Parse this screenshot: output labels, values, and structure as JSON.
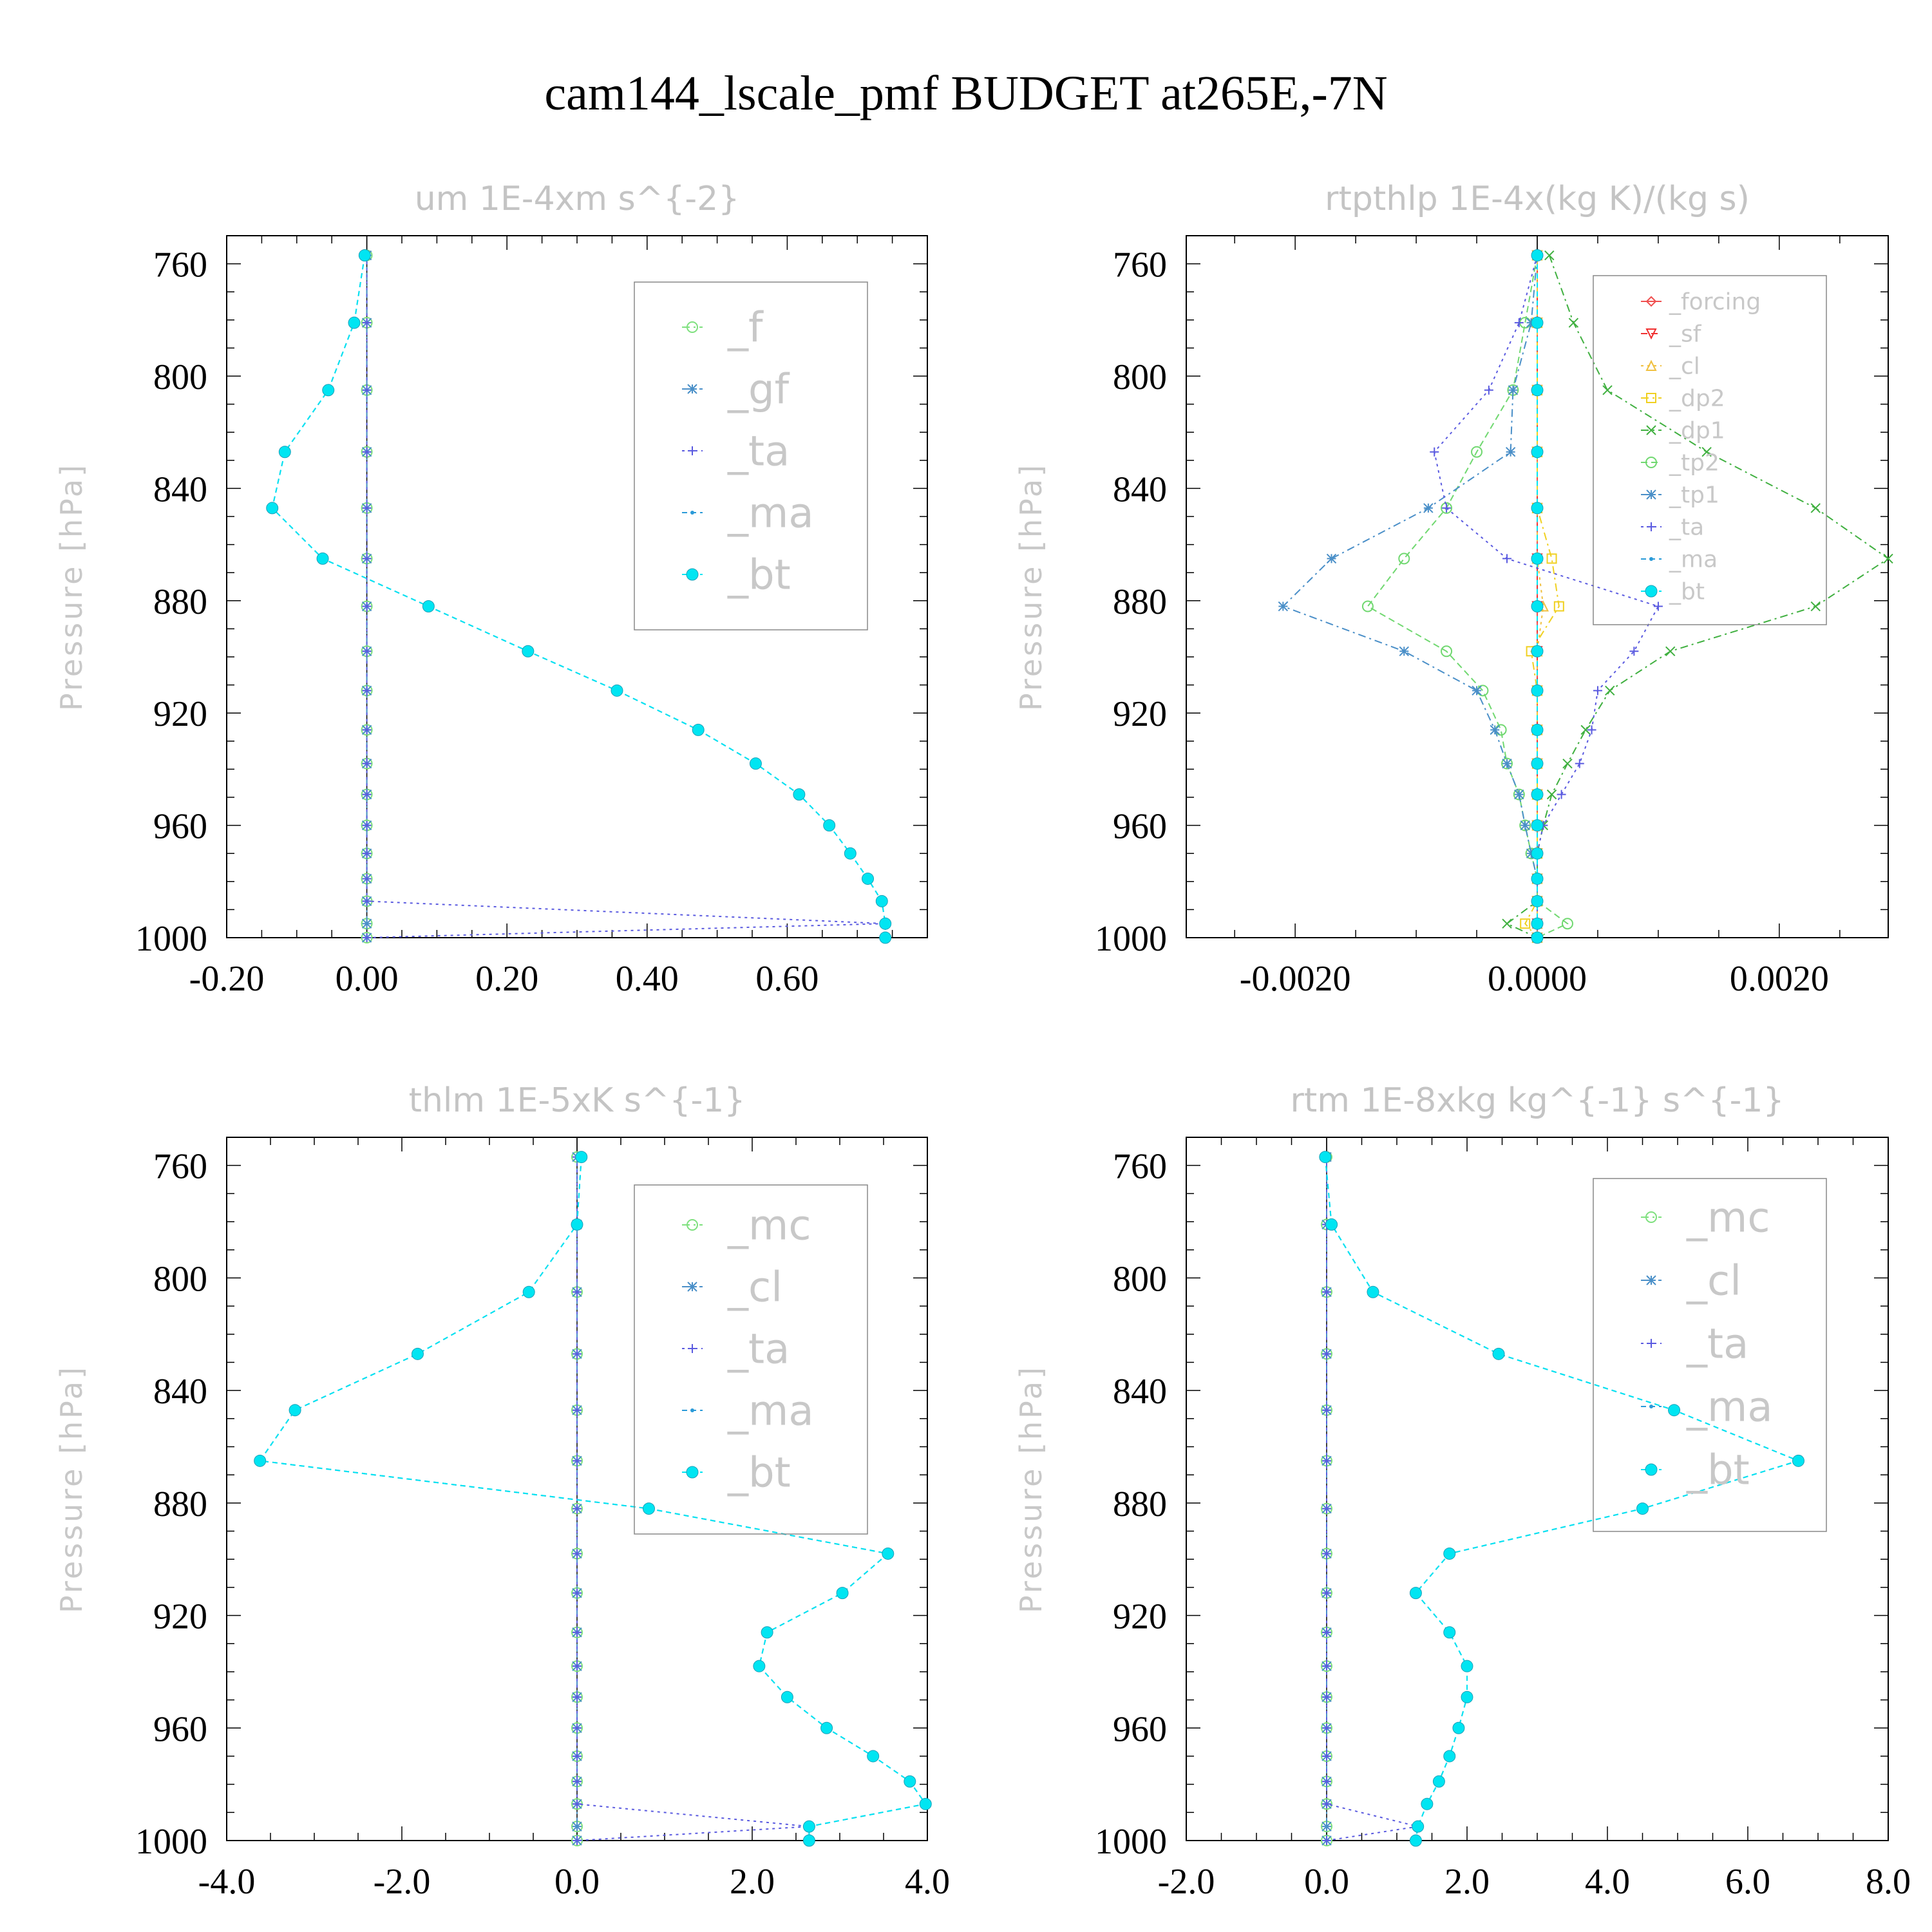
{
  "figure": {
    "title": "cam144_lscale_pmf  BUDGET at265E,-7N"
  },
  "chart_data": [
    {
      "type": "line",
      "title": "um   1E-4xm s^{-2}",
      "xlabel": "",
      "ylabel": "Pressure [hPa]",
      "xlim": [
        -0.2,
        0.8
      ],
      "ylim": [
        1000,
        750
      ],
      "xticks": [
        -0.2,
        0.0,
        0.2,
        0.4,
        0.6
      ],
      "xtick_labels": [
        "-0.20",
        "0.00",
        "0.20",
        "0.40",
        "0.60"
      ],
      "yticks": [
        760,
        800,
        840,
        880,
        920,
        960,
        1000
      ],
      "ytick_labels": [
        "760",
        "800",
        "840",
        "880",
        "920",
        "960",
        "1000"
      ],
      "legend_position": "top-right",
      "legend_font": 64,
      "levels": [
        757,
        781,
        805,
        827,
        847,
        865,
        882,
        898,
        912,
        926,
        938,
        949,
        960,
        970,
        979,
        987,
        995,
        1000
      ],
      "series": [
        {
          "name": "_f",
          "color": "#7ee07e",
          "marker": "circle",
          "dash": "12,6,3,6",
          "values": [
            0,
            0,
            0,
            0,
            0,
            0,
            0,
            0,
            0,
            0,
            0,
            0,
            0,
            0,
            0,
            0,
            0,
            0
          ]
        },
        {
          "name": "_gf",
          "color": "#4a8fc8",
          "marker": "star",
          "dash": "12,6,3,6",
          "values": [
            0,
            0,
            0,
            0,
            0,
            0,
            0,
            0,
            0,
            0,
            0,
            0,
            0,
            0,
            0,
            0,
            0,
            0
          ]
        },
        {
          "name": "_ta",
          "color": "#5a5ae0",
          "marker": "plus",
          "dash": "4,6",
          "values": [
            0,
            0,
            0,
            0,
            0,
            0,
            0,
            0,
            0,
            0,
            0,
            0,
            0,
            0,
            0,
            0,
            0.74,
            0
          ]
        },
        {
          "name": "_ma",
          "color": "#2a9ad8",
          "marker": "dot",
          "dash": "8,6",
          "values": [
            -0.003,
            -0.018,
            -0.055,
            -0.117,
            -0.135,
            -0.063,
            0.088,
            0.23,
            0.357,
            0.473,
            0.555,
            0.617,
            0.66,
            0.69,
            0.715,
            0.735,
            0.74,
            0.74
          ]
        },
        {
          "name": "_bt",
          "color": "#00e5f2",
          "marker": "bigdot",
          "dash": "8,6",
          "values": [
            -0.003,
            -0.018,
            -0.055,
            -0.117,
            -0.135,
            -0.063,
            0.088,
            0.23,
            0.357,
            0.473,
            0.555,
            0.617,
            0.66,
            0.69,
            0.715,
            0.735,
            0.74,
            0.74
          ]
        }
      ]
    },
    {
      "type": "line",
      "title": "rtpthlp   1E-4x(kg K)/(kg s)",
      "xlabel": "",
      "ylabel": "Pressure [hPa]",
      "xlim": [
        -0.0029,
        0.0029
      ],
      "ylim": [
        1000,
        750
      ],
      "xticks": [
        -0.002,
        0.0,
        0.002
      ],
      "xtick_labels": [
        "-0.0020",
        "0.0000",
        "0.0020"
      ],
      "yticks": [
        760,
        800,
        840,
        880,
        920,
        960,
        1000
      ],
      "ytick_labels": [
        "760",
        "800",
        "840",
        "880",
        "920",
        "960",
        "1000"
      ],
      "legend_position": "top-right",
      "legend_font": 36,
      "levels": [
        757,
        781,
        805,
        827,
        847,
        865,
        882,
        898,
        912,
        926,
        938,
        949,
        960,
        970,
        979,
        987,
        995,
        1000
      ],
      "series": [
        {
          "name": "_forcing",
          "color": "#f05050",
          "marker": "diamond",
          "dash": "",
          "values": [
            0,
            0,
            0,
            0,
            0,
            0,
            0,
            0,
            0,
            0,
            0,
            0,
            0,
            0,
            0,
            0,
            0,
            0
          ]
        },
        {
          "name": "_sf",
          "color": "#f03030",
          "marker": "triangle-down",
          "dash": "10,6",
          "values": [
            0,
            0,
            0,
            0,
            0,
            0,
            0,
            0,
            0,
            0,
            0,
            0,
            0,
            0,
            0,
            0,
            0,
            0
          ]
        },
        {
          "name": "_cl",
          "color": "#f0c040",
          "marker": "triangle-up",
          "dash": "4,6",
          "values": [
            0,
            0,
            0,
            0,
            0,
            0,
            5e-05,
            0,
            0,
            0,
            0,
            0,
            0,
            0,
            0,
            0,
            0,
            0
          ]
        },
        {
          "name": "_dp2",
          "color": "#f0d020",
          "marker": "square",
          "dash": "12,6,3,6",
          "values": [
            0,
            0,
            0,
            0,
            0,
            0.00012,
            0.00018,
            -5e-05,
            0,
            0,
            0,
            0,
            0,
            0,
            0,
            0,
            -0.0001,
            0
          ]
        },
        {
          "name": "_dp1",
          "color": "#40b040",
          "marker": "cross",
          "dash": "12,6,3,6",
          "values": [
            0.0001,
            0.0003,
            0.00058,
            0.0014,
            0.0023,
            0.0029,
            0.0023,
            0.0011,
            0.0006,
            0.0004,
            0.00025,
            0.00012,
            5e-05,
            0,
            0,
            0,
            -0.00025,
            0
          ]
        },
        {
          "name": "_tp2",
          "color": "#70d870",
          "marker": "circle",
          "dash": "10,6",
          "values": [
            0,
            -0.0001,
            -0.0002,
            -0.0005,
            -0.00075,
            -0.0011,
            -0.0014,
            -0.00075,
            -0.00045,
            -0.0003,
            -0.00025,
            -0.00015,
            -0.0001,
            -5e-05,
            0,
            0,
            0.00025,
            0
          ]
        },
        {
          "name": "_tp1",
          "color": "#4a8fc8",
          "marker": "star",
          "dash": "12,6,3,6",
          "values": [
            0,
            -5e-05,
            -0.0002,
            -0.00022,
            -0.0009,
            -0.0017,
            -0.0021,
            -0.0011,
            -0.0005,
            -0.00035,
            -0.00025,
            -0.00015,
            -0.0001,
            -5e-05,
            0,
            0,
            0,
            0
          ]
        },
        {
          "name": "_ta",
          "color": "#5a5ae0",
          "marker": "plus",
          "dash": "4,6",
          "values": [
            0,
            -0.00015,
            -0.0004,
            -0.00085,
            -0.00075,
            -0.00025,
            0.001,
            0.0008,
            0.0005,
            0.00045,
            0.00035,
            0.0002,
            5e-05,
            0,
            0,
            0,
            0,
            0
          ]
        },
        {
          "name": "_ma",
          "color": "#2a9ad8",
          "marker": "dot",
          "dash": "8,6",
          "values": [
            0,
            0,
            0,
            0,
            0,
            0,
            0,
            0,
            0,
            0,
            0,
            0,
            0,
            0,
            0,
            0,
            0,
            0
          ]
        },
        {
          "name": "_bt",
          "color": "#00e5f2",
          "marker": "bigdot",
          "dash": "8,6",
          "values": [
            0,
            0,
            0,
            0,
            0,
            0,
            0,
            0,
            0,
            0,
            0,
            0,
            0,
            0,
            0,
            0,
            0,
            0
          ]
        }
      ]
    },
    {
      "type": "line",
      "title": "thlm   1E-5xK s^{-1}",
      "xlabel": "",
      "ylabel": "Pressure [hPa]",
      "xlim": [
        -4.0,
        4.0
      ],
      "ylim": [
        1000,
        750
      ],
      "xticks": [
        -4.0,
        -2.0,
        0.0,
        2.0,
        4.0
      ],
      "xtick_labels": [
        "-4.0",
        "-2.0",
        "0.0",
        "2.0",
        "4.0"
      ],
      "yticks": [
        760,
        800,
        840,
        880,
        920,
        960,
        1000
      ],
      "ytick_labels": [
        "760",
        "800",
        "840",
        "880",
        "920",
        "960",
        "1000"
      ],
      "legend_position": "top-right",
      "legend_font": 64,
      "levels": [
        757,
        781,
        805,
        827,
        847,
        865,
        882,
        898,
        912,
        926,
        938,
        949,
        960,
        970,
        979,
        987,
        995,
        1000
      ],
      "series": [
        {
          "name": "_mc",
          "color": "#7ee07e",
          "marker": "circle",
          "dash": "12,6,3,6",
          "values": [
            0,
            0,
            0,
            0,
            0,
            0,
            0,
            0,
            0,
            0,
            0,
            0,
            0,
            0,
            0,
            0,
            0,
            0
          ]
        },
        {
          "name": "_cl",
          "color": "#4a8fc8",
          "marker": "star",
          "dash": "12,6,3,6",
          "values": [
            0,
            0,
            0,
            0,
            0,
            0,
            0,
            0,
            0,
            0,
            0,
            0,
            0,
            0,
            0,
            0,
            0,
            0
          ]
        },
        {
          "name": "_ta",
          "color": "#5a5ae0",
          "marker": "plus",
          "dash": "4,6",
          "values": [
            0,
            0,
            0,
            0,
            0,
            0,
            0,
            0,
            0,
            0,
            0,
            0,
            0,
            0,
            0,
            0,
            2.65,
            0
          ]
        },
        {
          "name": "_ma",
          "color": "#2a9ad8",
          "marker": "dot",
          "dash": "8,6",
          "values": [
            0.05,
            0,
            -0.55,
            -1.82,
            -3.22,
            -3.62,
            0.82,
            3.55,
            3.03,
            2.17,
            2.08,
            2.4,
            2.85,
            3.38,
            3.8,
            3.98,
            2.65,
            2.65
          ]
        },
        {
          "name": "_bt",
          "color": "#00e5f2",
          "marker": "bigdot",
          "dash": "8,6",
          "values": [
            0.05,
            0,
            -0.55,
            -1.82,
            -3.22,
            -3.62,
            0.82,
            3.55,
            3.03,
            2.17,
            2.08,
            2.4,
            2.85,
            3.38,
            3.8,
            3.98,
            2.65,
            2.65
          ]
        }
      ]
    },
    {
      "type": "line",
      "title": "rtm   1E-8xkg kg^{-1} s^{-1}",
      "xlabel": "",
      "ylabel": "Pressure [hPa]",
      "xlim": [
        -2.0,
        8.0
      ],
      "ylim": [
        1000,
        750
      ],
      "xticks": [
        -2.0,
        0.0,
        2.0,
        4.0,
        6.0,
        8.0
      ],
      "xtick_labels": [
        "-2.0",
        "0.0",
        "2.0",
        "4.0",
        "6.0",
        "8.0"
      ],
      "yticks": [
        760,
        800,
        840,
        880,
        920,
        960,
        1000
      ],
      "ytick_labels": [
        "760",
        "800",
        "840",
        "880",
        "920",
        "960",
        "1000"
      ],
      "legend_position": "top-right",
      "legend_font": 64,
      "levels": [
        757,
        781,
        805,
        827,
        847,
        865,
        882,
        898,
        912,
        926,
        938,
        949,
        960,
        970,
        979,
        987,
        995,
        1000
      ],
      "series": [
        {
          "name": "_mc",
          "color": "#7ee07e",
          "marker": "circle",
          "dash": "12,6,3,6",
          "values": [
            0,
            0,
            0,
            0,
            0,
            0,
            0,
            0,
            0,
            0,
            0,
            0,
            0,
            0,
            0,
            0,
            0,
            0
          ]
        },
        {
          "name": "_cl",
          "color": "#4a8fc8",
          "marker": "star",
          "dash": "12,6,3,6",
          "values": [
            0,
            0,
            0,
            0,
            0,
            0,
            0,
            0,
            0,
            0,
            0,
            0,
            0,
            0,
            0,
            0,
            0,
            0
          ]
        },
        {
          "name": "_ta",
          "color": "#5a5ae0",
          "marker": "plus",
          "dash": "4,6",
          "values": [
            0,
            0,
            0,
            0,
            0,
            0,
            0,
            0,
            0,
            0,
            0,
            0,
            0,
            0,
            0,
            0,
            1.3,
            0
          ]
        },
        {
          "name": "_ma",
          "color": "#2a9ad8",
          "marker": "dot",
          "dash": "8,6",
          "values": [
            -0.02,
            0.07,
            0.66,
            2.45,
            4.95,
            6.72,
            4.5,
            1.75,
            1.27,
            1.75,
            2.0,
            2.0,
            1.88,
            1.75,
            1.6,
            1.43,
            1.3,
            1.27
          ]
        },
        {
          "name": "_bt",
          "color": "#00e5f2",
          "marker": "bigdot",
          "dash": "8,6",
          "values": [
            -0.02,
            0.07,
            0.66,
            2.45,
            4.95,
            6.72,
            4.5,
            1.75,
            1.27,
            1.75,
            2.0,
            2.0,
            1.88,
            1.75,
            1.6,
            1.43,
            1.3,
            1.27
          ]
        }
      ]
    }
  ]
}
